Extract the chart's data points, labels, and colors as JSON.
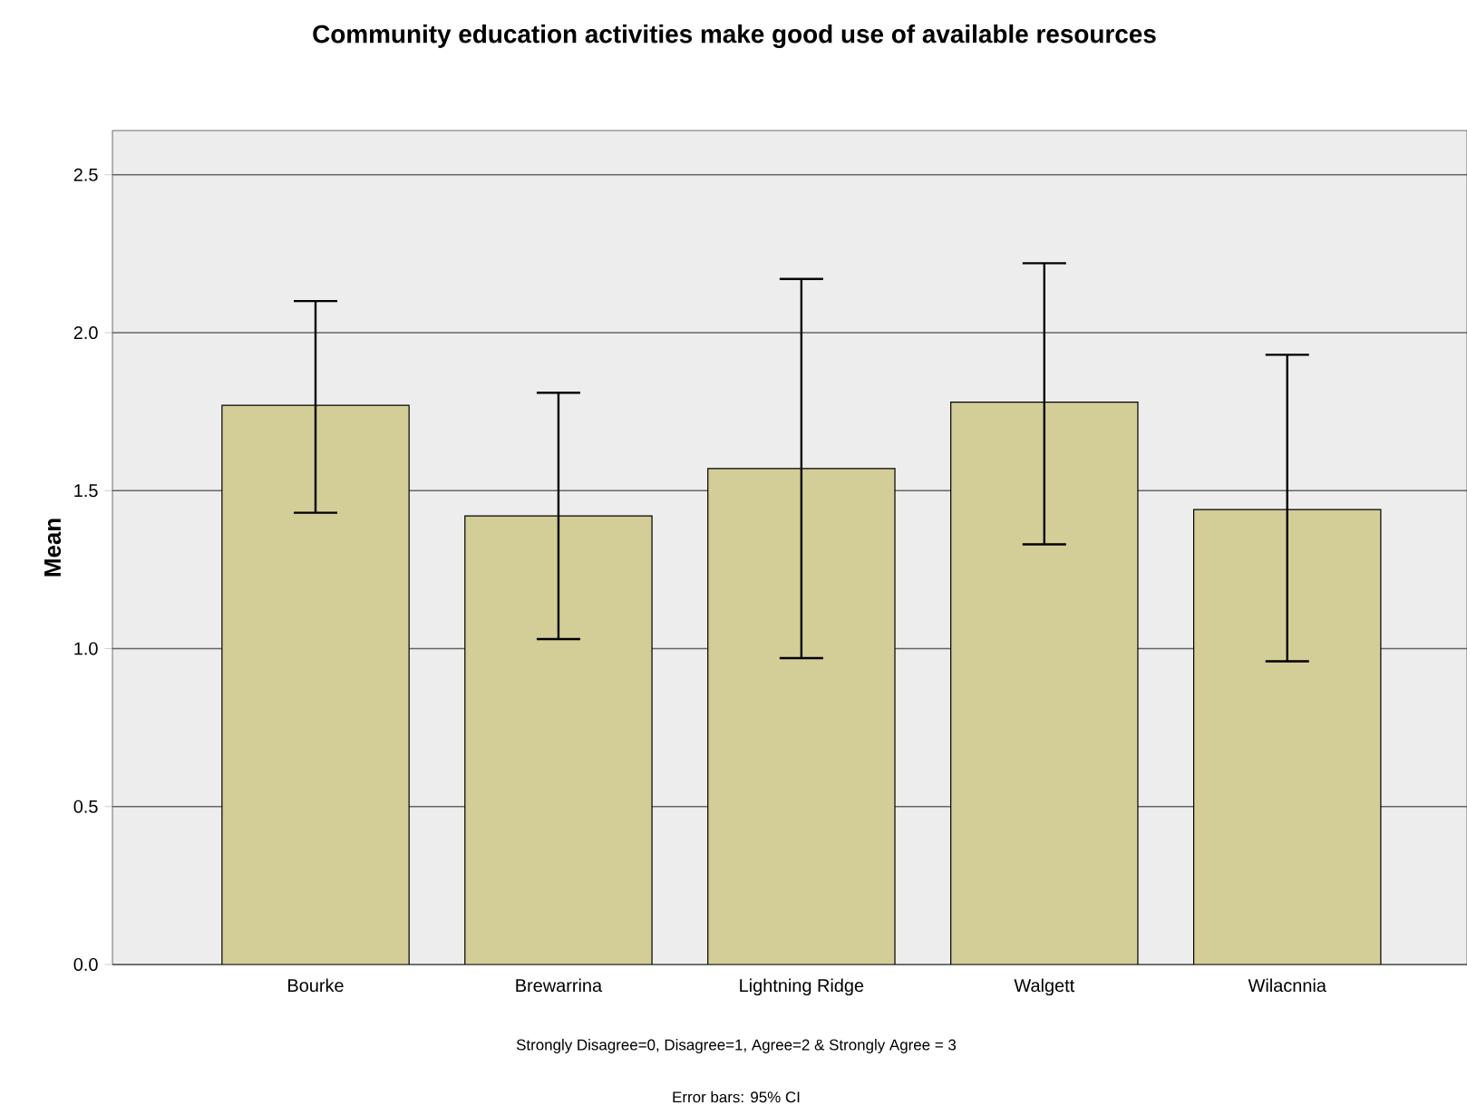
{
  "chart_data": {
    "type": "bar",
    "title": "Community education activities make good use of available resources",
    "ylabel": "Mean",
    "categories": [
      "Bourke",
      "Brewarrina",
      "Lightning Ridge",
      "Walgett",
      "Wilacnnia"
    ],
    "values": [
      1.77,
      1.42,
      1.57,
      1.78,
      1.44
    ],
    "errors": [
      [
        1.43,
        2.1
      ],
      [
        1.03,
        1.81
      ],
      [
        0.97,
        2.17
      ],
      [
        1.33,
        2.22
      ],
      [
        0.96,
        1.93
      ]
    ],
    "color": "#d3cd97",
    "ylim": [
      0,
      2.64
    ],
    "yticks": [
      {
        "value": 0,
        "label": "0.0"
      },
      {
        "value": 0.5,
        "label": "0.5"
      },
      {
        "value": 1,
        "label": "1.0"
      },
      {
        "value": 1.5,
        "label": "1.5"
      },
      {
        "value": 2,
        "label": "2.0"
      },
      {
        "value": 2.5,
        "label": "2.5"
      }
    ],
    "grid": "y",
    "annotations": [
      "Strongly Disagree=0, Disagree=1, Agree=2 & Strongly Agree = 3",
      "Error bars: 95% CI"
    ]
  }
}
